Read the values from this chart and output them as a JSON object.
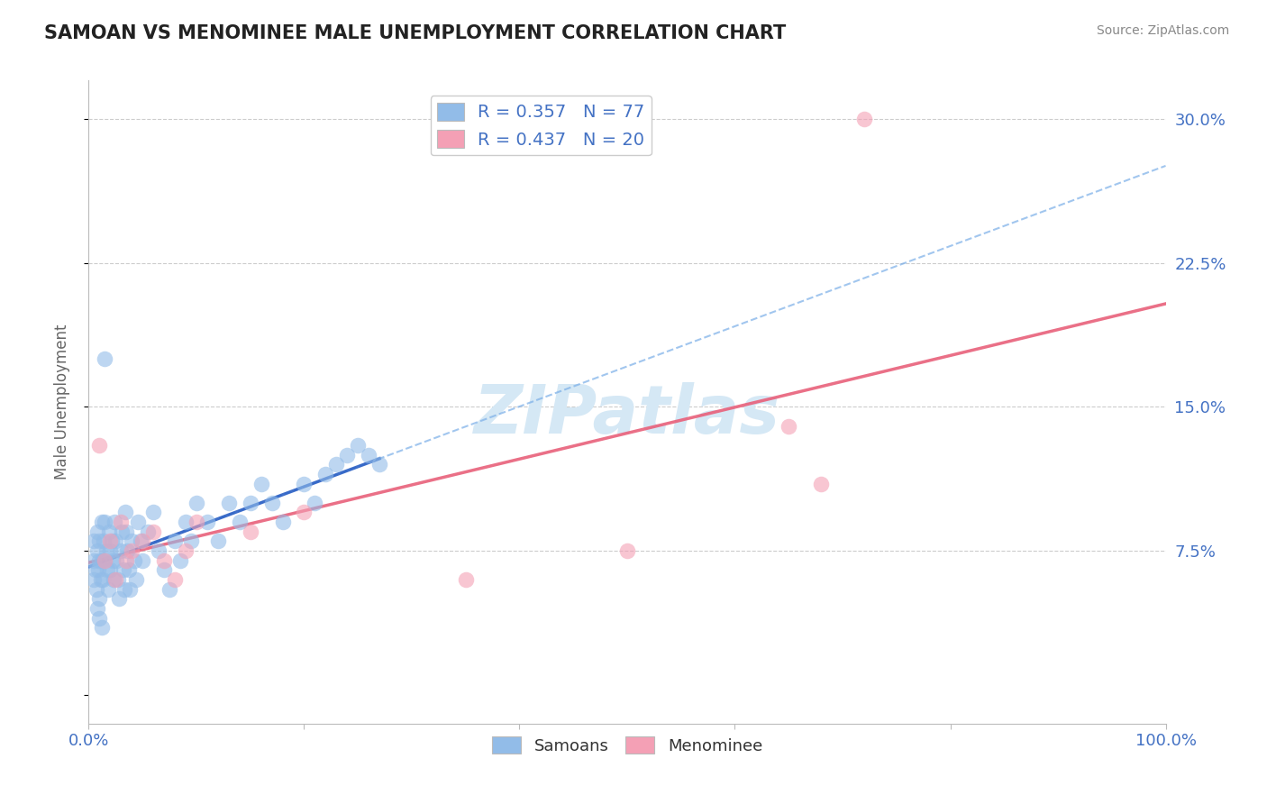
{
  "title": "SAMOAN VS MENOMINEE MALE UNEMPLOYMENT CORRELATION CHART",
  "source": "Source: ZipAtlas.com",
  "ylabel": "Male Unemployment",
  "xlim": [
    0.0,
    1.0
  ],
  "ylim": [
    -0.015,
    0.32
  ],
  "xticks": [
    0.0,
    0.2,
    0.4,
    0.6,
    0.8,
    1.0
  ],
  "xticklabels": [
    "0.0%",
    "",
    "",
    "",
    "",
    "100.0%"
  ],
  "yticks": [
    0.0,
    0.075,
    0.15,
    0.225,
    0.3
  ],
  "yticklabels": [
    "",
    "7.5%",
    "15.0%",
    "22.5%",
    "30.0%"
  ],
  "samoan_R": 0.357,
  "samoan_N": 77,
  "menominee_R": 0.437,
  "menominee_N": 20,
  "samoan_color": "#92bce8",
  "menominee_color": "#f4a0b5",
  "samoan_line_color": "#2a5fc4",
  "samoan_dash_color": "#7aaee8",
  "menominee_line_color": "#e8607a",
  "grid_color": "#cccccc",
  "watermark": "ZIPatlas",
  "watermark_color": "#d5e8f5",
  "background_color": "#ffffff",
  "title_color": "#222222",
  "tick_color": "#4472c4",
  "samoan_x": [
    0.005,
    0.005,
    0.005,
    0.006,
    0.007,
    0.008,
    0.008,
    0.009,
    0.01,
    0.01,
    0.01,
    0.011,
    0.012,
    0.012,
    0.013,
    0.014,
    0.015,
    0.015,
    0.016,
    0.017,
    0.018,
    0.019,
    0.02,
    0.02,
    0.021,
    0.022,
    0.023,
    0.024,
    0.025,
    0.026,
    0.027,
    0.028,
    0.03,
    0.031,
    0.032,
    0.033,
    0.034,
    0.035,
    0.036,
    0.037,
    0.038,
    0.04,
    0.042,
    0.044,
    0.046,
    0.048,
    0.05,
    0.055,
    0.06,
    0.065,
    0.07,
    0.075,
    0.08,
    0.085,
    0.09,
    0.095,
    0.1,
    0.11,
    0.12,
    0.13,
    0.14,
    0.15,
    0.16,
    0.17,
    0.18,
    0.2,
    0.21,
    0.22,
    0.23,
    0.24,
    0.25,
    0.26,
    0.27,
    0.01,
    0.012,
    0.008,
    0.015
  ],
  "samoan_y": [
    0.06,
    0.07,
    0.08,
    0.065,
    0.055,
    0.075,
    0.085,
    0.065,
    0.05,
    0.07,
    0.08,
    0.06,
    0.09,
    0.07,
    0.06,
    0.08,
    0.07,
    0.09,
    0.075,
    0.065,
    0.055,
    0.085,
    0.075,
    0.065,
    0.08,
    0.07,
    0.06,
    0.09,
    0.08,
    0.07,
    0.06,
    0.05,
    0.075,
    0.085,
    0.065,
    0.055,
    0.095,
    0.085,
    0.075,
    0.065,
    0.055,
    0.08,
    0.07,
    0.06,
    0.09,
    0.08,
    0.07,
    0.085,
    0.095,
    0.075,
    0.065,
    0.055,
    0.08,
    0.07,
    0.09,
    0.08,
    0.1,
    0.09,
    0.08,
    0.1,
    0.09,
    0.1,
    0.11,
    0.1,
    0.09,
    0.11,
    0.1,
    0.115,
    0.12,
    0.125,
    0.13,
    0.125,
    0.12,
    0.04,
    0.035,
    0.045,
    0.175
  ],
  "menominee_x": [
    0.01,
    0.015,
    0.02,
    0.025,
    0.03,
    0.035,
    0.04,
    0.05,
    0.06,
    0.07,
    0.08,
    0.09,
    0.1,
    0.15,
    0.2,
    0.65,
    0.68,
    0.72,
    0.5,
    0.35
  ],
  "menominee_y": [
    0.13,
    0.07,
    0.08,
    0.06,
    0.09,
    0.07,
    0.075,
    0.08,
    0.085,
    0.07,
    0.06,
    0.075,
    0.09,
    0.085,
    0.095,
    0.14,
    0.11,
    0.3,
    0.075,
    0.06
  ]
}
